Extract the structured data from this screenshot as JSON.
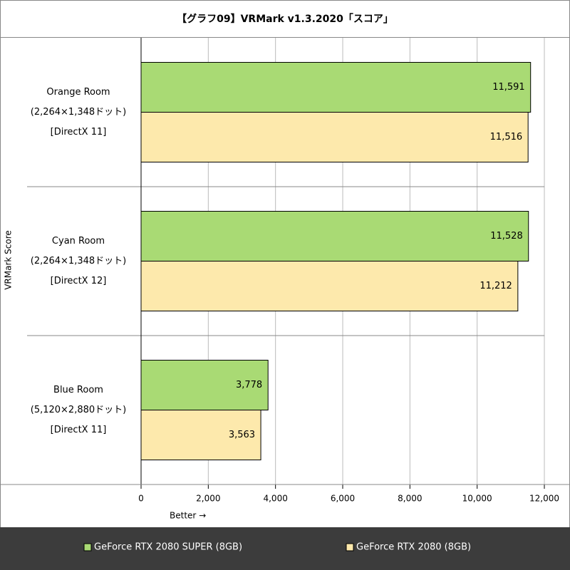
{
  "chart_data": {
    "type": "bar",
    "orientation": "horizontal",
    "title": "【グラフ09】VRMark v1.3.2020「スコア」",
    "y_axis_label": "VRMark Score",
    "x_axis_label": "Better →",
    "categories": [
      [
        "Orange Room",
        "(2,264×1,348ドット)",
        "[DirectX 11]"
      ],
      [
        "Cyan Room",
        "(2,264×1,348ドット)",
        "[DirectX 12]"
      ],
      [
        "Blue Room",
        "(5,120×2,880ドット)",
        "[DirectX 11]"
      ]
    ],
    "series": [
      {
        "name": "GeForce RTX 2080 SUPER (8GB)",
        "color": "#a9da74",
        "values": [
          11591,
          11528,
          3778
        ],
        "value_labels": [
          "11,591",
          "11,528",
          "3,778"
        ]
      },
      {
        "name": "GeForce RTX 2080 (8GB)",
        "color": "#fde9ac",
        "values": [
          11516,
          11212,
          3563
        ],
        "value_labels": [
          "11,516",
          "11,212",
          "3,563"
        ]
      }
    ],
    "xlim": [
      0,
      12000
    ],
    "xticks": [
      0,
      {
        "value": 2000,
        "label": "2,000"
      },
      {
        "value": 4000,
        "label": "4,000"
      },
      {
        "value": 6000,
        "label": "6,000"
      },
      {
        "value": 8000,
        "label": "8,000"
      },
      {
        "value": 10000,
        "label": "10,000"
      },
      {
        "value": 12000,
        "label": "12,000"
      }
    ],
    "grid": true,
    "legend": "bottom"
  }
}
